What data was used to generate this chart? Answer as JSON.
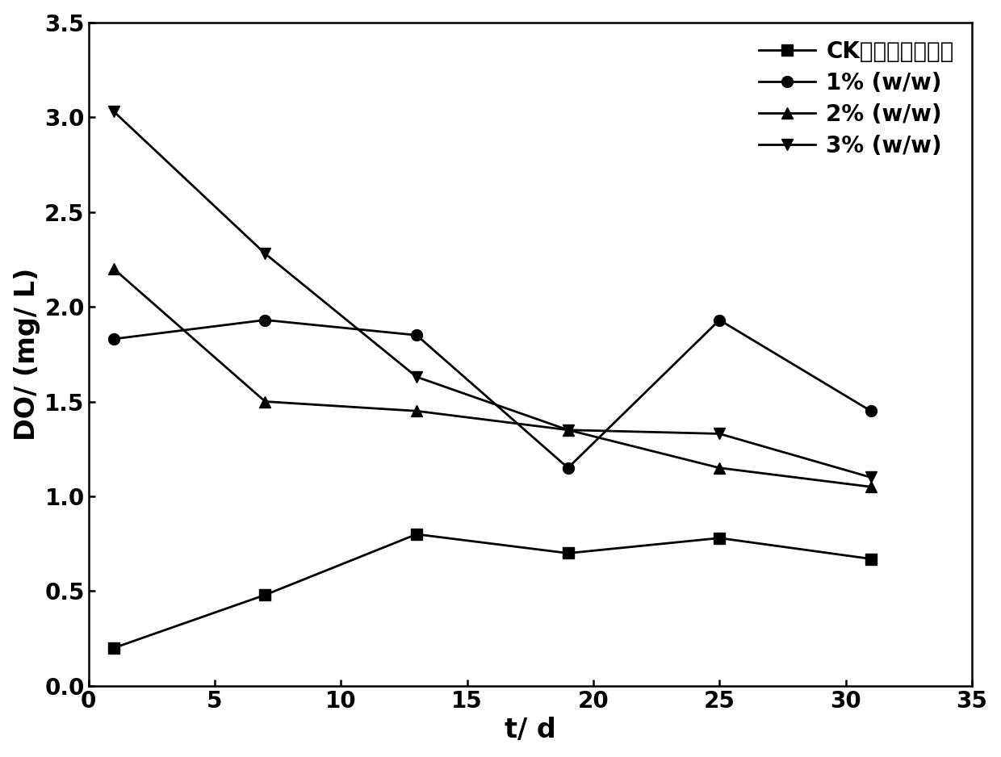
{
  "x": [
    1,
    7,
    13,
    19,
    25,
    31
  ],
  "series": [
    {
      "label_ck": "CK（空白对照组）",
      "values": [
        0.2,
        0.48,
        0.8,
        0.7,
        0.78,
        0.67
      ],
      "marker": "s",
      "linestyle": "-"
    },
    {
      "label": "1% (w/w)",
      "values": [
        1.83,
        1.93,
        1.85,
        1.15,
        1.93,
        1.45
      ],
      "marker": "o",
      "linestyle": "-"
    },
    {
      "label": "2% (w/w)",
      "values": [
        2.2,
        1.5,
        1.45,
        1.35,
        1.15,
        1.05
      ],
      "marker": "^",
      "linestyle": "-"
    },
    {
      "label": "3% (w/w)",
      "values": [
        3.03,
        2.28,
        1.63,
        1.35,
        1.33,
        1.1
      ],
      "marker": "v",
      "linestyle": "-"
    }
  ],
  "xlabel": "t/ d",
  "ylabel": "DO/ (mg/ L)",
  "xlim": [
    0,
    34
  ],
  "ylim": [
    0.0,
    3.5
  ],
  "yticks": [
    0.0,
    0.5,
    1.0,
    1.5,
    2.0,
    2.5,
    3.0,
    3.5
  ],
  "xticks": [
    0,
    5,
    10,
    15,
    20,
    25,
    30,
    35
  ],
  "color": "#000000",
  "linewidth": 2.0,
  "markersize": 10,
  "legend_loc": "upper right",
  "axis_fontsize": 24,
  "tick_fontsize": 20,
  "legend_fontsize": 20
}
